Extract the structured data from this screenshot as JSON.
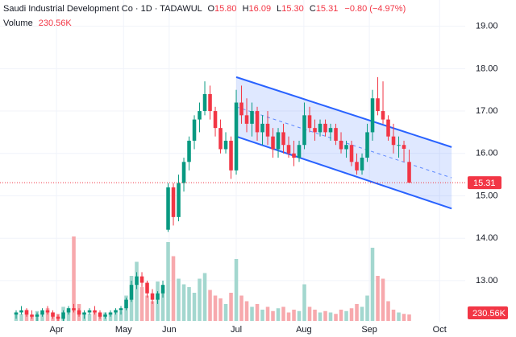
{
  "chart_data": {
    "type": "candlestick",
    "legend": {
      "name": "Saudi Industrial Development Co · 1D · TADAWUL",
      "items": [
        {
          "key": "O",
          "value": "15.80"
        },
        {
          "key": "H",
          "value": "16.09"
        },
        {
          "key": "L",
          "value": "15.30"
        },
        {
          "key": "C",
          "value": "15.31"
        }
      ],
      "change": "−0.80 (−4.97%)",
      "volume_label": "Volume",
      "volume_value": "230.56K"
    },
    "up_color": "#089981",
    "down_color": "#f23645",
    "volume_up_color": "#a3d7cf",
    "volume_down_color": "#f7a9ad",
    "channel_color": "#2962ff",
    "grid": true,
    "xlim": [
      -3.08,
      85.38
    ],
    "xticks": [
      {
        "value": 7.7,
        "label": "Apr"
      },
      {
        "value": 20.5,
        "label": "May"
      },
      {
        "value": 29.2,
        "label": "Jun"
      },
      {
        "value": 42,
        "label": "Jul"
      },
      {
        "value": 54.9,
        "label": "Aug"
      },
      {
        "value": 67.4,
        "label": "Sep"
      },
      {
        "value": 80.8,
        "label": "Oct"
      }
    ],
    "ylim": [
      12.05,
      19.6
    ],
    "yticks": [
      {
        "value": 13,
        "label": "13.00"
      },
      {
        "value": 14,
        "label": "14.00"
      },
      {
        "value": 15,
        "label": "15.00"
      },
      {
        "value": 16,
        "label": "16.00"
      },
      {
        "value": 17,
        "label": "17.00"
      },
      {
        "value": 18,
        "label": "18.00"
      },
      {
        "value": 19,
        "label": "19.00"
      }
    ],
    "volume_lim": [
      0,
      3000000
    ],
    "last_price": 15.31,
    "channel": {
      "x": [
        42,
        83.1
      ],
      "upper": [
        17.8,
        16.15
      ],
      "lower": [
        16.4,
        14.7
      ]
    },
    "open": [
      12.2,
      12.25,
      12.3,
      12.2,
      12.15,
      12.2,
      12.3,
      12.25,
      12.15,
      12.1,
      12.25,
      12.35,
      12.3,
      12.2,
      12.25,
      12.3,
      12.25,
      12.15,
      12.2,
      12.25,
      12.3,
      12.35,
      12.55,
      12.9,
      13.1,
      12.95,
      12.7,
      12.55,
      12.7,
      14.2,
      15.2,
      14.5,
      15.3,
      15.8,
      16.3,
      16.8,
      17.0,
      17.4,
      17.0,
      16.6,
      16.1,
      16.3,
      15.6,
      17.2,
      16.9,
      16.7,
      17.0,
      16.5,
      16.7,
      16.4,
      16.1,
      16.5,
      16.2,
      16.0,
      15.9,
      16.2,
      16.9,
      16.6,
      16.5,
      16.7,
      16.5,
      16.6,
      16.3,
      16.1,
      16.2,
      15.8,
      15.6,
      15.9,
      16.5,
      17.3,
      17.0,
      16.8,
      16.4,
      16.2,
      16.2,
      15.8
    ],
    "high": [
      12.3,
      12.4,
      12.35,
      12.3,
      12.25,
      12.35,
      12.4,
      12.3,
      12.2,
      12.3,
      12.4,
      12.45,
      12.35,
      12.3,
      12.35,
      12.4,
      12.3,
      12.25,
      12.3,
      12.35,
      12.4,
      12.6,
      13.0,
      13.2,
      13.2,
      13.0,
      12.8,
      12.75,
      13.0,
      15.3,
      15.3,
      15.5,
      15.9,
      16.4,
      16.9,
      17.2,
      17.7,
      17.6,
      17.1,
      16.8,
      16.5,
      16.4,
      17.5,
      17.6,
      17.3,
      17.2,
      17.1,
      16.9,
      17.0,
      16.6,
      16.6,
      16.7,
      16.4,
      16.3,
      16.3,
      17.2,
      17.1,
      16.8,
      16.8,
      16.8,
      16.7,
      16.7,
      16.5,
      16.3,
      16.3,
      16.0,
      16.0,
      16.7,
      17.5,
      17.8,
      17.7,
      16.9,
      16.7,
      16.4,
      16.3,
      16.09
    ],
    "low": [
      12.1,
      12.2,
      12.15,
      12.1,
      12.05,
      12.15,
      12.2,
      12.1,
      12.05,
      12.05,
      12.2,
      12.25,
      12.15,
      12.1,
      12.2,
      12.2,
      12.1,
      12.1,
      12.15,
      12.2,
      12.2,
      12.3,
      12.5,
      12.8,
      12.85,
      12.6,
      12.45,
      12.45,
      12.6,
      14.15,
      14.3,
      14.4,
      15.1,
      15.6,
      16.1,
      16.5,
      16.9,
      16.8,
      16.4,
      16.0,
      16.0,
      15.4,
      15.5,
      16.7,
      16.5,
      16.4,
      16.3,
      16.2,
      16.2,
      15.9,
      15.9,
      16.0,
      15.9,
      15.7,
      15.8,
      16.1,
      16.5,
      16.3,
      16.4,
      16.4,
      16.3,
      16.2,
      16.0,
      15.9,
      15.7,
      15.5,
      15.5,
      15.8,
      16.3,
      16.9,
      16.7,
      16.3,
      16.0,
      15.9,
      15.8,
      15.3
    ],
    "close": [
      12.25,
      12.3,
      12.2,
      12.15,
      12.2,
      12.3,
      12.25,
      12.15,
      12.1,
      12.25,
      12.35,
      12.3,
      12.2,
      12.25,
      12.3,
      12.25,
      12.15,
      12.2,
      12.25,
      12.3,
      12.35,
      12.55,
      12.9,
      13.1,
      12.95,
      12.7,
      12.55,
      12.7,
      12.9,
      15.2,
      14.5,
      15.3,
      15.8,
      16.3,
      16.8,
      17.0,
      17.4,
      17.0,
      16.6,
      16.1,
      16.3,
      15.6,
      17.2,
      16.9,
      16.7,
      17.0,
      16.5,
      16.7,
      16.4,
      16.1,
      16.5,
      16.2,
      16.0,
      15.9,
      16.2,
      16.9,
      16.6,
      16.5,
      16.7,
      16.5,
      16.6,
      16.3,
      16.1,
      16.2,
      15.8,
      15.6,
      15.9,
      16.5,
      17.3,
      17.0,
      16.8,
      16.4,
      16.2,
      16.2,
      16.11,
      15.31
    ],
    "volume": [
      300000,
      250000,
      400000,
      200000,
      350000,
      280000,
      450000,
      300000,
      250000,
      500000,
      400000,
      3000000,
      600000,
      300000,
      250000,
      350000,
      200000,
      300000,
      260000,
      400000,
      350000,
      900000,
      1600000,
      2100000,
      1200000,
      900000,
      700000,
      1400000,
      1100000,
      2800000,
      2300000,
      1500000,
      1300000,
      1200000,
      1000000,
      1500000,
      1700000,
      1100000,
      900000,
      800000,
      600000,
      1000000,
      2200000,
      900000,
      700000,
      500000,
      600000,
      400000,
      500000,
      350000,
      450000,
      500000,
      300000,
      400000,
      350000,
      1300000,
      500000,
      400000,
      300000,
      350000,
      300000,
      250000,
      400000,
      350000,
      450000,
      600000,
      500000,
      900000,
      2600000,
      1600000,
      1500000,
      700000,
      400000,
      300000,
      250000,
      230560
    ],
    "volume_value_labels_last": "230.56K"
  }
}
